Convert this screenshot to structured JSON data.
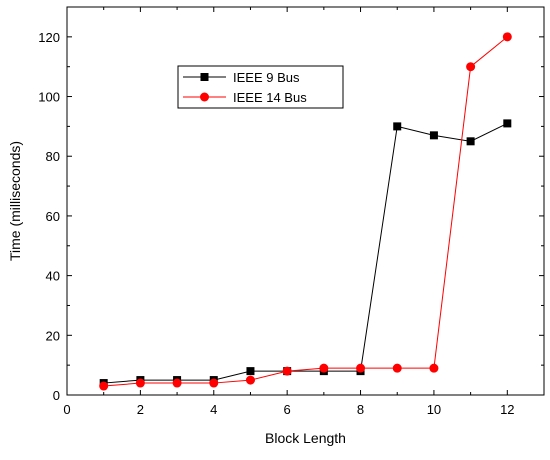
{
  "chart_data": {
    "type": "line",
    "title": "",
    "xlabel": "Block Length",
    "ylabel": "Time (milliseconds)",
    "xlim": [
      0,
      13
    ],
    "ylim": [
      0,
      130
    ],
    "x_ticks": [
      0,
      2,
      4,
      6,
      8,
      10,
      12
    ],
    "x_tick_labels": [
      "0",
      "2",
      "4",
      "6",
      "8",
      "10",
      "12"
    ],
    "y_ticks": [
      0,
      20,
      40,
      60,
      80,
      100,
      120
    ],
    "y_tick_labels": [
      "0",
      "20",
      "40",
      "60",
      "80",
      "100",
      "120"
    ],
    "grid": false,
    "legend_position": "upper-left",
    "series": [
      {
        "name": "IEEE 9 Bus",
        "color": "#000000",
        "marker": "square",
        "x": [
          1,
          2,
          3,
          4,
          5,
          6,
          7,
          8,
          9,
          10,
          11,
          12
        ],
        "y": [
          4,
          5,
          5,
          5,
          8,
          8,
          8,
          8,
          90,
          87,
          85,
          91
        ]
      },
      {
        "name": "IEEE 14 Bus",
        "color": "#ff0000",
        "marker": "circle",
        "x": [
          1,
          2,
          3,
          4,
          5,
          6,
          7,
          8,
          9,
          10,
          11,
          12
        ],
        "y": [
          3,
          4,
          4,
          4,
          5,
          8,
          9,
          9,
          9,
          9,
          110,
          120
        ]
      }
    ]
  }
}
